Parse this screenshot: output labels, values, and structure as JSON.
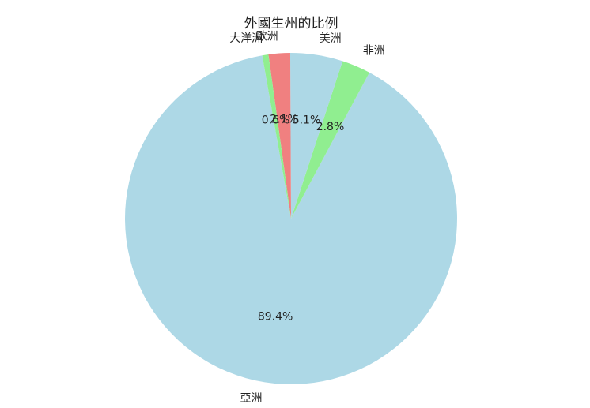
{
  "chart_data": {
    "type": "pie",
    "title": "外國生州的比例",
    "start_angle": 100,
    "direction": "counterclockwise",
    "slices": [
      {
        "label": "亞洲",
        "pct_label": "89.4%",
        "value": 89.4,
        "color": "#add8e6"
      },
      {
        "label": "非洲",
        "pct_label": "2.8%",
        "value": 2.8,
        "color": "#90ee90"
      },
      {
        "label": "美洲",
        "pct_label": "5.1%",
        "value": 5.1,
        "color": "#add8e6"
      },
      {
        "label": "歐洲",
        "pct_label": "2.1%",
        "value": 2.1,
        "color": "#f08080"
      },
      {
        "label": "大洋洲",
        "pct_label": "0.6%",
        "value": 0.6,
        "color": "#90ee90"
      }
    ]
  }
}
